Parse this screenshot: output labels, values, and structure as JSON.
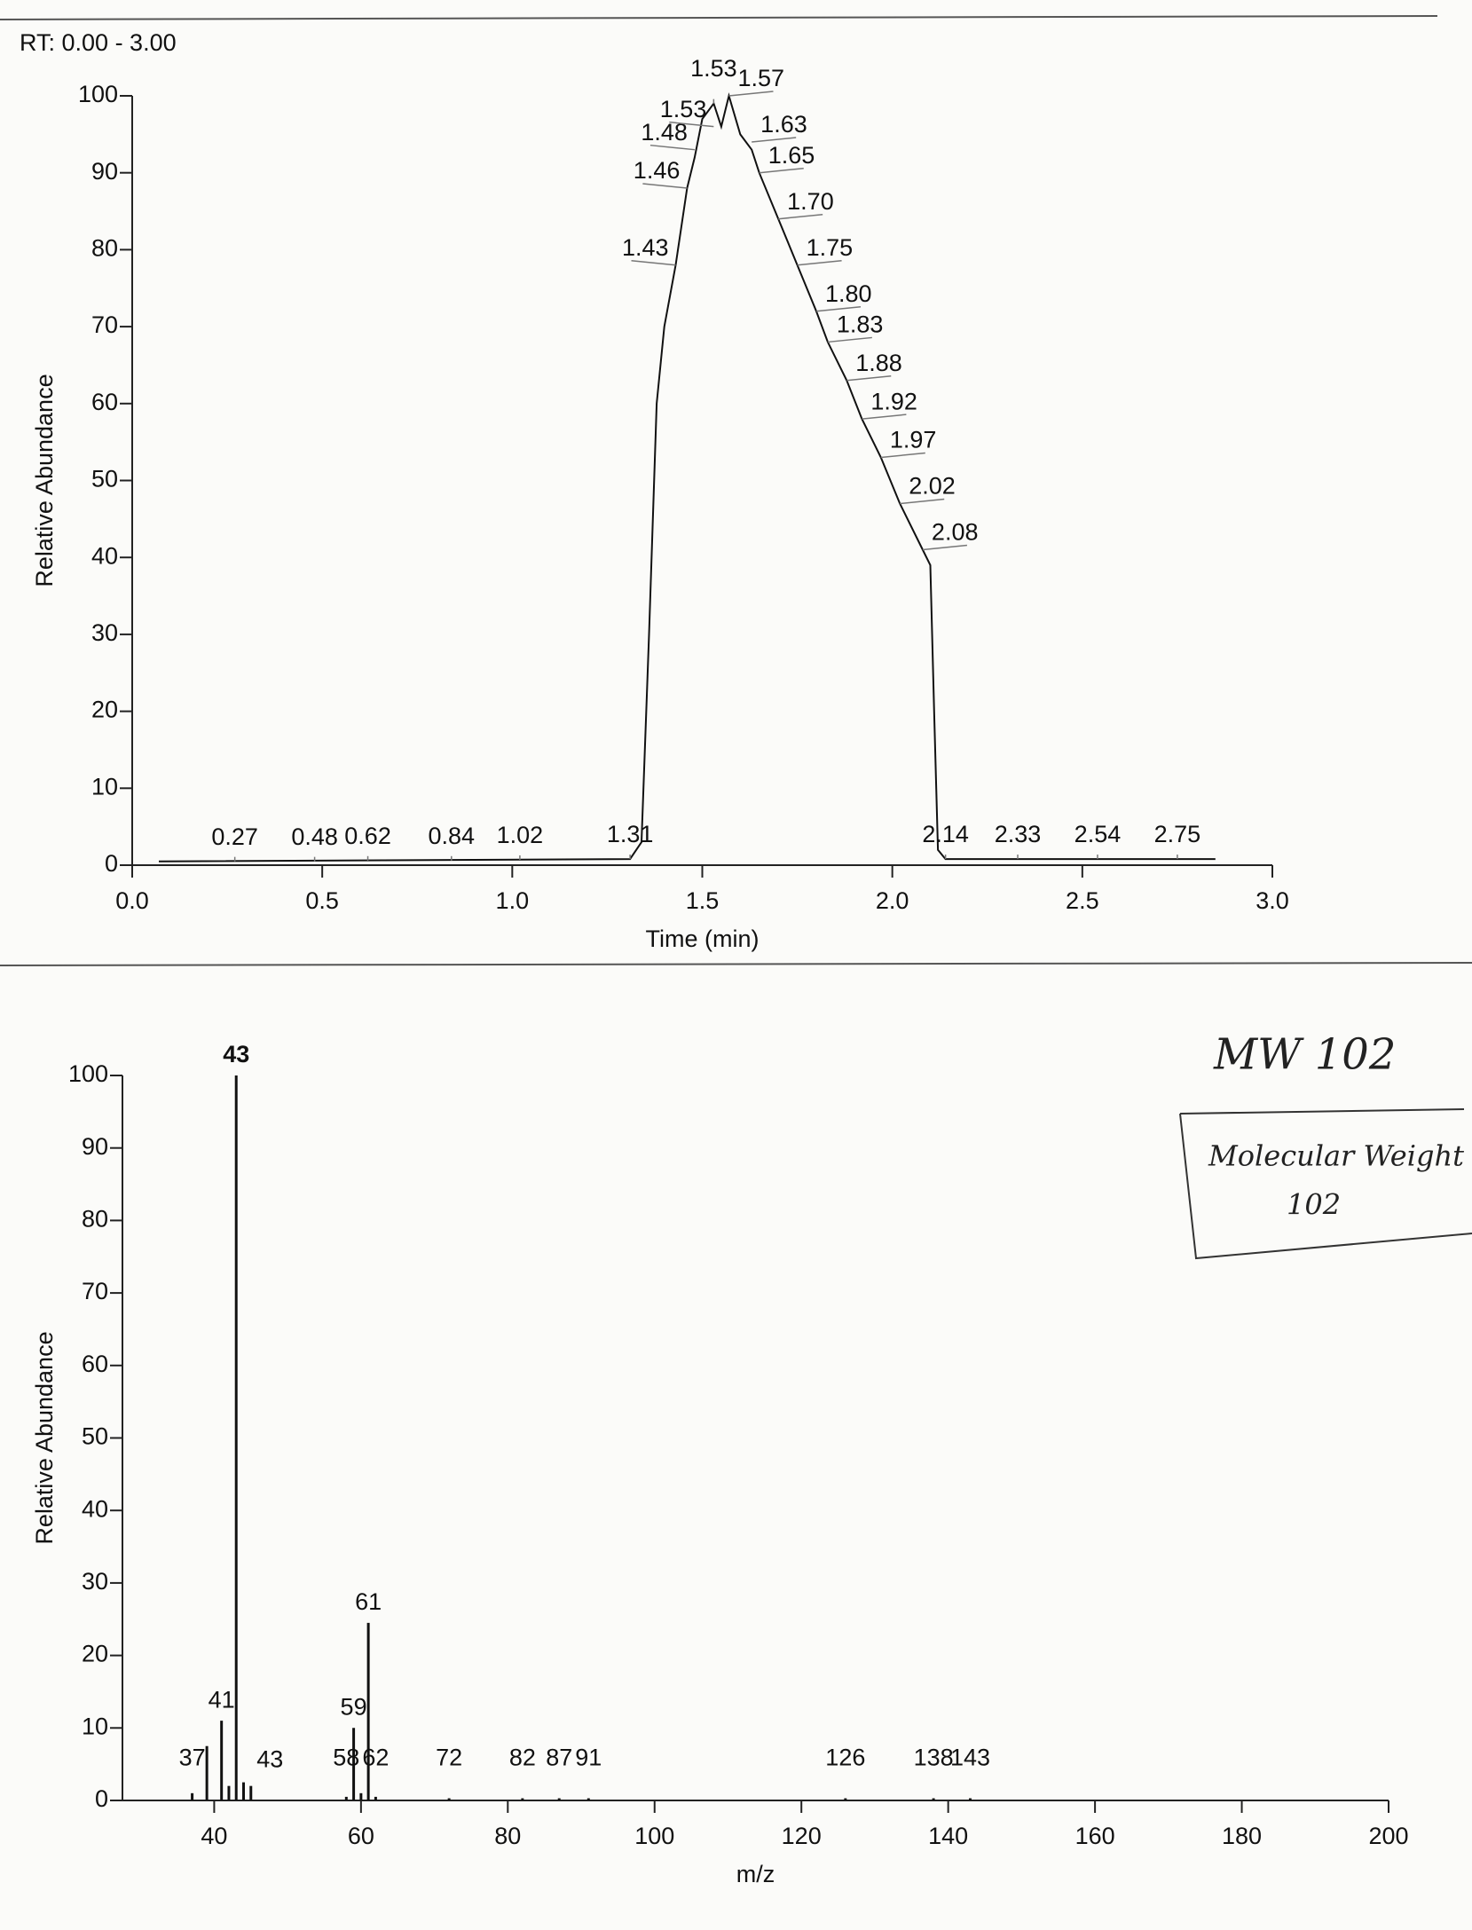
{
  "chart_data": [
    {
      "type": "line",
      "title": "RT: 0.00 - 3.00",
      "x_label": "Time (min)",
      "y_label": "Relative Abundance",
      "color": "#111111",
      "xlim": [
        0,
        3
      ],
      "ylim": [
        0,
        100
      ],
      "xticks": [
        {
          "value": 0,
          "label": "0.0"
        },
        0.5,
        {
          "value": 1,
          "label": "1.0"
        },
        1.5,
        {
          "value": 2,
          "label": "2.0"
        },
        2.5,
        {
          "value": 3,
          "label": "3.0"
        }
      ],
      "yticks": [
        0,
        10,
        20,
        30,
        40,
        50,
        60,
        70,
        80,
        90,
        100
      ],
      "x": [
        0.07,
        1.31,
        1.34,
        1.36,
        1.38,
        1.4,
        1.43,
        1.46,
        1.48,
        1.5,
        1.53,
        1.55,
        1.57,
        1.6,
        1.63,
        1.65,
        1.7,
        1.75,
        1.8,
        1.83,
        1.88,
        1.92,
        1.97,
        2.02,
        2.08,
        2.1,
        2.11,
        2.12,
        2.14,
        2.33,
        2.54,
        2.75,
        2.85
      ],
      "values": [
        0.5,
        0.8,
        3,
        30,
        60,
        70,
        78,
        88,
        92,
        97,
        99,
        96,
        100,
        95,
        93,
        90,
        84,
        78,
        72,
        68,
        63,
        58,
        53,
        47,
        41,
        39,
        20,
        2,
        0.8,
        0.8,
        0.8,
        0.8,
        0.8
      ],
      "peaks": [
        {
          "x": 0.27,
          "y": 0.5,
          "label": "0.27"
        },
        {
          "x": 0.48,
          "y": 0.5,
          "label": "0.48"
        },
        {
          "x": 0.62,
          "y": 0.6,
          "label": "0.62"
        },
        {
          "x": 0.84,
          "y": 0.6,
          "label": "0.84"
        },
        {
          "x": 1.02,
          "y": 0.7,
          "label": "1.02"
        },
        {
          "x": 1.31,
          "y": 0.8,
          "label": "1.31"
        },
        {
          "x": 1.43,
          "y": 78,
          "label": "1.43"
        },
        {
          "x": 1.46,
          "y": 88,
          "label": "1.46"
        },
        {
          "x": 1.48,
          "y": 93,
          "label": "1.48"
        },
        {
          "x": 1.53,
          "y": 96,
          "label": "1.53"
        },
        {
          "x": 1.53,
          "y": 99,
          "label": "1.53"
        },
        {
          "x": 1.57,
          "y": 100,
          "label": "1.57"
        },
        {
          "x": 1.63,
          "y": 94,
          "label": "1.63"
        },
        {
          "x": 1.65,
          "y": 90,
          "label": "1.65"
        },
        {
          "x": 1.7,
          "y": 84,
          "label": "1.70"
        },
        {
          "x": 1.75,
          "y": 78,
          "label": "1.75"
        },
        {
          "x": 1.8,
          "y": 72,
          "label": "1.80"
        },
        {
          "x": 1.83,
          "y": 68,
          "label": "1.83"
        },
        {
          "x": 1.88,
          "y": 63,
          "label": "1.88"
        },
        {
          "x": 1.92,
          "y": 58,
          "label": "1.92"
        },
        {
          "x": 1.97,
          "y": 53,
          "label": "1.97"
        },
        {
          "x": 2.02,
          "y": 47,
          "label": "2.02"
        },
        {
          "x": 2.08,
          "y": 41,
          "label": "2.08"
        },
        {
          "x": 2.14,
          "y": 0.8,
          "label": "2.14"
        },
        {
          "x": 2.33,
          "y": 0.8,
          "label": "2.33"
        },
        {
          "x": 2.54,
          "y": 0.8,
          "label": "2.54"
        },
        {
          "x": 2.75,
          "y": 0.8,
          "label": "2.75"
        }
      ]
    },
    {
      "type": "stick",
      "x_label": "m/z",
      "y_label": "Relative Abundance",
      "color": "#111111",
      "xlim": [
        27.5,
        200
      ],
      "ylim": [
        0,
        100
      ],
      "xticks": [
        40,
        60,
        80,
        100,
        120,
        140,
        160,
        180,
        200
      ],
      "yticks": [
        0,
        10,
        20,
        30,
        40,
        50,
        60,
        70,
        80,
        90,
        100
      ],
      "x": [
        37,
        39,
        41,
        42,
        43,
        44,
        45,
        58,
        59,
        60,
        61,
        62,
        72,
        82,
        87,
        91,
        126,
        138,
        143
      ],
      "values": [
        1,
        7.5,
        11,
        2,
        100,
        2.5,
        2,
        0.5,
        10,
        1,
        24.5,
        0.5,
        0.3,
        0.3,
        0.3,
        0.3,
        0.3,
        0.3,
        0.3
      ],
      "x_labels": [
        "37",
        null,
        "41",
        null,
        "43",
        null,
        null,
        "58",
        "59",
        null,
        "61",
        "62",
        "72",
        "82",
        "87",
        "91",
        "126",
        "138",
        "143"
      ],
      "annotations": [
        {
          "x": 43,
          "y": 3,
          "text": "43"
        }
      ]
    }
  ],
  "notes": {
    "heading": "MW 102",
    "box_line1": "Molecular Weight",
    "box_line2": "102"
  }
}
